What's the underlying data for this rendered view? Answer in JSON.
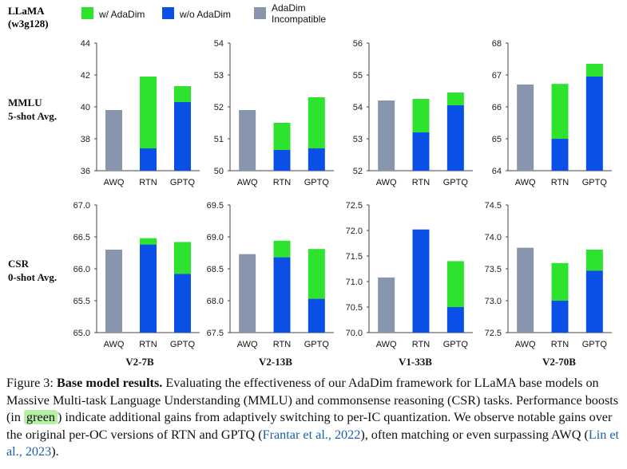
{
  "header": {
    "line1": "LLaMA",
    "line2": "(w3g128)"
  },
  "legend": [
    {
      "label": "w/ AdaDim",
      "color": "#2ee32e",
      "lines": [
        "w/ AdaDim"
      ]
    },
    {
      "label": "w/o AdaDim",
      "color": "#0a4fe6",
      "lines": [
        "w/o AdaDim"
      ]
    },
    {
      "label": "AdaDim Incompatible",
      "color": "#8796ac",
      "lines": [
        "AdaDim",
        "Incompatible"
      ]
    }
  ],
  "row_labels": [
    {
      "line1": "MMLU",
      "line2": "5-shot Avg."
    },
    {
      "line1": "CSR",
      "line2": "0-shot Avg."
    }
  ],
  "model_labels": [
    "V2-7B",
    "V2-13B",
    "V1-33B",
    "V2-70B"
  ],
  "colors": {
    "adadim": "#2ee32e",
    "base": "#0a4fe6",
    "incompatible": "#8796ac"
  },
  "chart_data": [
    {
      "type": "bar",
      "title": "",
      "model": "V2-7B",
      "metric": "MMLU",
      "categories": [
        "AWQ",
        "RTN",
        "GPTQ"
      ],
      "ylim": [
        36,
        44
      ],
      "yticks": [
        "36",
        "38",
        "40",
        "42",
        "44"
      ],
      "series": [
        {
          "name": "AdaDim Incompatible",
          "values": [
            39.8,
            null,
            null
          ]
        },
        {
          "name": "w/o AdaDim",
          "values": [
            null,
            37.4,
            40.3
          ]
        },
        {
          "name": "w/ AdaDim",
          "values": [
            null,
            41.9,
            41.3
          ]
        }
      ]
    },
    {
      "type": "bar",
      "title": "",
      "model": "V2-13B",
      "metric": "MMLU",
      "categories": [
        "AWQ",
        "RTN",
        "GPTQ"
      ],
      "ylim": [
        50,
        54
      ],
      "yticks": [
        "50",
        "51",
        "52",
        "53",
        "54"
      ],
      "series": [
        {
          "name": "AdaDim Incompatible",
          "values": [
            51.9,
            null,
            null
          ]
        },
        {
          "name": "w/o AdaDim",
          "values": [
            null,
            50.65,
            50.7
          ]
        },
        {
          "name": "w/ AdaDim",
          "values": [
            null,
            51.5,
            52.3
          ]
        }
      ]
    },
    {
      "type": "bar",
      "title": "",
      "model": "V1-33B",
      "metric": "MMLU",
      "categories": [
        "AWQ",
        "RTN",
        "GPTQ"
      ],
      "ylim": [
        52,
        56
      ],
      "yticks": [
        "52",
        "53",
        "54",
        "55",
        "56"
      ],
      "series": [
        {
          "name": "AdaDim Incompatible",
          "values": [
            54.2,
            null,
            null
          ]
        },
        {
          "name": "w/o AdaDim",
          "values": [
            null,
            53.2,
            54.05
          ]
        },
        {
          "name": "w/ AdaDim",
          "values": [
            null,
            54.25,
            54.45
          ]
        }
      ]
    },
    {
      "type": "bar",
      "title": "",
      "model": "V2-70B",
      "metric": "MMLU",
      "categories": [
        "AWQ",
        "RTN",
        "GPTQ"
      ],
      "ylim": [
        64,
        68
      ],
      "yticks": [
        "64",
        "65",
        "66",
        "67",
        "68"
      ],
      "series": [
        {
          "name": "AdaDim Incompatible",
          "values": [
            66.7,
            null,
            null
          ]
        },
        {
          "name": "w/o AdaDim",
          "values": [
            null,
            65.0,
            66.95
          ]
        },
        {
          "name": "w/ AdaDim",
          "values": [
            null,
            66.72,
            67.35
          ]
        }
      ]
    },
    {
      "type": "bar",
      "title": "",
      "model": "V2-7B",
      "metric": "CSR",
      "categories": [
        "AWQ",
        "RTN",
        "GPTQ"
      ],
      "ylim": [
        65.0,
        67.0
      ],
      "yticks": [
        "65.0",
        "65.5",
        "66.0",
        "66.5",
        "67.0"
      ],
      "series": [
        {
          "name": "AdaDim Incompatible",
          "values": [
            66.3,
            null,
            null
          ]
        },
        {
          "name": "w/o AdaDim",
          "values": [
            null,
            66.38,
            65.92
          ]
        },
        {
          "name": "w/ AdaDim",
          "values": [
            null,
            66.48,
            66.42
          ]
        }
      ]
    },
    {
      "type": "bar",
      "title": "",
      "model": "V2-13B",
      "metric": "CSR",
      "categories": [
        "AWQ",
        "RTN",
        "GPTQ"
      ],
      "ylim": [
        67.5,
        69.5
      ],
      "yticks": [
        "67.5",
        "68.0",
        "68.5",
        "69.0",
        "69.5"
      ],
      "series": [
        {
          "name": "AdaDim Incompatible",
          "values": [
            68.73,
            null,
            null
          ]
        },
        {
          "name": "w/o AdaDim",
          "values": [
            null,
            68.68,
            68.03
          ]
        },
        {
          "name": "w/ AdaDim",
          "values": [
            null,
            68.94,
            68.81
          ]
        }
      ]
    },
    {
      "type": "bar",
      "title": "",
      "model": "V1-33B",
      "metric": "CSR",
      "categories": [
        "AWQ",
        "RTN",
        "GPTQ"
      ],
      "ylim": [
        70.0,
        72.5
      ],
      "yticks": [
        "70.0",
        "70.5",
        "71.0",
        "71.5",
        "72.0",
        "72.5"
      ],
      "series": [
        {
          "name": "AdaDim Incompatible",
          "values": [
            71.08,
            null,
            null
          ]
        },
        {
          "name": "w/o AdaDim",
          "values": [
            null,
            72.02,
            70.5
          ]
        },
        {
          "name": "w/ AdaDim",
          "values": [
            null,
            null,
            71.4
          ]
        }
      ]
    },
    {
      "type": "bar",
      "title": "",
      "model": "V2-70B",
      "metric": "CSR",
      "categories": [
        "AWQ",
        "RTN",
        "GPTQ"
      ],
      "ylim": [
        72.5,
        74.5
      ],
      "yticks": [
        "72.5",
        "73.0",
        "73.5",
        "74.0",
        "74.5"
      ],
      "series": [
        {
          "name": "AdaDim Incompatible",
          "values": [
            73.83,
            null,
            null
          ]
        },
        {
          "name": "w/o AdaDim",
          "values": [
            null,
            73.0,
            73.47
          ]
        },
        {
          "name": "w/ AdaDim",
          "values": [
            null,
            73.59,
            73.8
          ]
        }
      ]
    }
  ],
  "caption": {
    "label": "Figure 3: ",
    "bold": "Base model results.",
    "p1": " Evaluating the effectiveness of our AdaDim framework for LLaMA base models on Massive Multi-task Language Understanding (MMLU) and commonsense reasoning (CSR) tasks. Performance boosts (in ",
    "highlight": "green",
    "p2": ") indicate additional gains from adaptively switching to per-IC quantization. We observe notable gains over the original per-OC versions of RTN and GPTQ (",
    "cite1": "Frantar et al., 2022",
    "p3": "), often matching or even surpassing AWQ (",
    "cite2": "Lin et al., 2023",
    "p4": ")."
  }
}
